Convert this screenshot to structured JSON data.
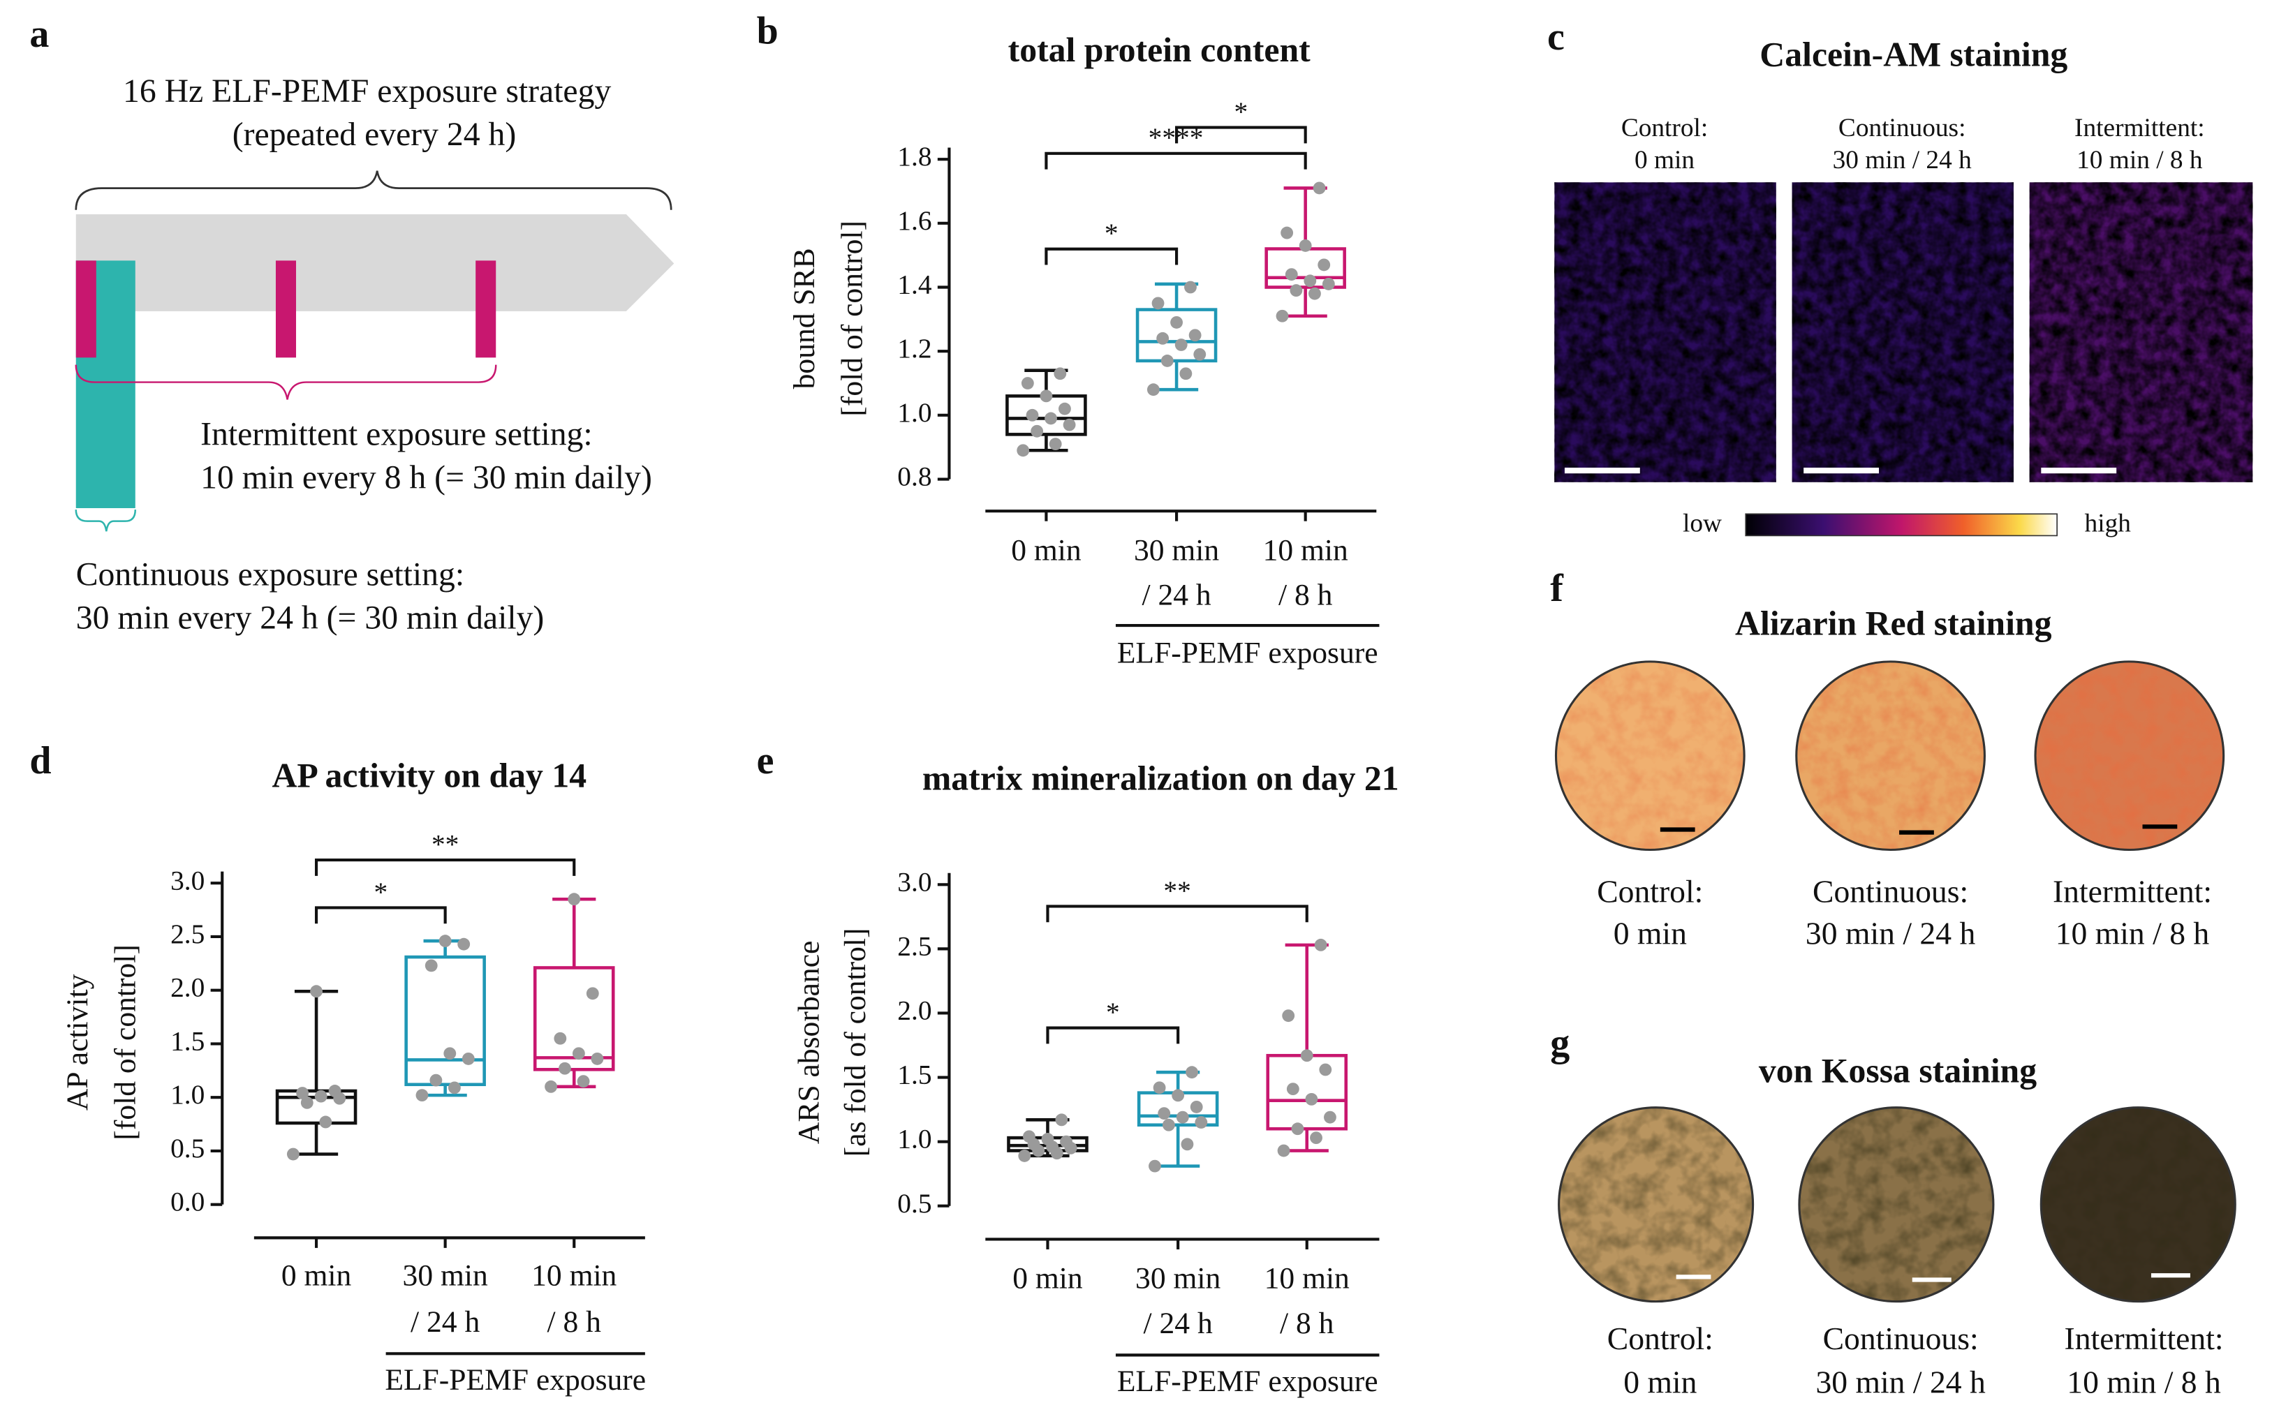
{
  "panels": {
    "a": {
      "letter": "a",
      "title": "16 Hz ELF-PEMF exposure strategy",
      "subtitle": "(repeated every 24 h)",
      "intermittent": [
        "Intermittent exposure setting:",
        "10 min every 8 h (= 30 min daily)"
      ],
      "continuous": [
        "Continuous exposure setting:",
        "30 min every 24 h (= 30 min daily)"
      ]
    },
    "c": {
      "letter": "c",
      "title": "Calcein-AM staining",
      "images": [
        [
          "Control:",
          "0 min"
        ],
        [
          "Continuous:",
          "30 min / 24 h"
        ],
        [
          "Intermittent:",
          "10 min / 8 h"
        ]
      ],
      "scale": [
        "low",
        "high"
      ]
    },
    "f": {
      "letter": "f",
      "title": "Alizarin Red staining",
      "images": [
        [
          "Control:",
          "0 min"
        ],
        [
          "Continuous:",
          "30 min / 24 h"
        ],
        [
          "Intermittent:",
          "10 min / 8 h"
        ]
      ]
    },
    "g": {
      "letter": "g",
      "title": "von Kossa staining",
      "images": [
        [
          "Control:",
          "0 min"
        ],
        [
          "Continuous:",
          "30 min / 24 h"
        ],
        [
          "Intermittent:",
          "10 min / 8 h"
        ]
      ]
    }
  },
  "chart_data": [
    {
      "type": "box",
      "panel": "b",
      "title": "total protein content",
      "y_label": [
        "bound SRB",
        "[fold of control]"
      ],
      "x_label": "ELF-PEMF exposure",
      "categories": [
        [
          "0 min"
        ],
        [
          "30 min",
          "/ 24 h"
        ],
        [
          "10 min",
          "/ 8 h"
        ]
      ],
      "ylim": [
        0.8,
        1.8
      ],
      "yticks": [
        0.8,
        {
          "value": 1,
          "label": "1.0"
        },
        1.2,
        1.4,
        1.6,
        1.8
      ],
      "boxes": [
        {
          "color": "#111111",
          "min": 0.89,
          "q1": 0.94,
          "median": 0.99,
          "q3": 1.06,
          "max": 1.14,
          "points": [
            0.89,
            0.91,
            0.95,
            0.97,
            0.99,
            1.0,
            1.02,
            1.06,
            1.1,
            1.13
          ]
        },
        {
          "color": "#1f97b5",
          "min": 1.08,
          "q1": 1.17,
          "median": 1.23,
          "q3": 1.33,
          "max": 1.41,
          "points": [
            1.08,
            1.13,
            1.17,
            1.19,
            1.22,
            1.24,
            1.25,
            1.29,
            1.35,
            1.4
          ]
        },
        {
          "color": "#c8176f",
          "min": 1.31,
          "q1": 1.4,
          "median": 1.43,
          "q3": 1.52,
          "max": 1.71,
          "points": [
            1.31,
            1.38,
            1.39,
            1.41,
            1.42,
            1.44,
            1.47,
            1.53,
            1.57,
            1.71
          ]
        }
      ],
      "significance": [
        {
          "label": "*",
          "between": [
            0,
            1
          ]
        },
        {
          "label": "****",
          "between": [
            0,
            2
          ]
        },
        {
          "label": "*",
          "between": [
            1,
            2
          ]
        }
      ]
    },
    {
      "type": "box",
      "panel": "d",
      "title": "AP activity on day 14",
      "y_label": [
        "AP activity",
        "[fold of control]"
      ],
      "x_label": "ELF-PEMF exposure",
      "categories": [
        [
          "0 min"
        ],
        [
          "30 min",
          "/ 24 h"
        ],
        [
          "10 min",
          "/ 8 h"
        ]
      ],
      "ylim": [
        0,
        3
      ],
      "yticks": [
        {
          "value": 0,
          "label": "0.0"
        },
        0.5,
        {
          "value": 1,
          "label": "1.0"
        },
        1.5,
        {
          "value": 2,
          "label": "2.0"
        },
        2.5,
        {
          "value": 3,
          "label": "3.0"
        }
      ],
      "boxes": [
        {
          "color": "#111111",
          "min": 0.47,
          "q1": 0.76,
          "median": 1.0,
          "q3": 1.06,
          "max": 1.99,
          "points": [
            0.47,
            0.77,
            0.95,
            0.99,
            1.01,
            1.04,
            1.06,
            1.99
          ]
        },
        {
          "color": "#1f97b5",
          "min": 1.02,
          "q1": 1.12,
          "median": 1.35,
          "q3": 2.31,
          "max": 2.46,
          "points": [
            1.02,
            1.09,
            1.16,
            1.36,
            1.41,
            2.23,
            2.43,
            2.46
          ]
        },
        {
          "color": "#c8176f",
          "min": 1.1,
          "q1": 1.26,
          "median": 1.37,
          "q3": 2.21,
          "max": 2.85,
          "points": [
            1.1,
            1.15,
            1.27,
            1.36,
            1.41,
            1.55,
            1.97,
            2.85
          ]
        }
      ],
      "significance": [
        {
          "label": "*",
          "between": [
            0,
            1
          ]
        },
        {
          "label": "**",
          "between": [
            0,
            2
          ]
        }
      ]
    },
    {
      "type": "box",
      "panel": "e",
      "title": "matrix mineralization on day 21",
      "y_label": [
        "ARS absorbance",
        "[as fold of control]"
      ],
      "x_label": "ELF-PEMF exposure",
      "categories": [
        [
          "0 min"
        ],
        [
          "30 min",
          "/ 24 h"
        ],
        [
          "10 min",
          "/ 8 h"
        ]
      ],
      "ylim": [
        0.5,
        3
      ],
      "yticks": [
        0.5,
        {
          "value": 1,
          "label": "1.0"
        },
        1.5,
        {
          "value": 2,
          "label": "2.0"
        },
        2.5,
        {
          "value": 3,
          "label": "3.0"
        }
      ],
      "boxes": [
        {
          "color": "#111111",
          "min": 0.89,
          "q1": 0.93,
          "median": 0.97,
          "q3": 1.03,
          "max": 1.17,
          "points": [
            0.89,
            0.91,
            0.93,
            0.95,
            0.96,
            0.98,
            1.0,
            1.02,
            1.04,
            1.17
          ]
        },
        {
          "color": "#1f97b5",
          "min": 0.81,
          "q1": 1.13,
          "median": 1.2,
          "q3": 1.38,
          "max": 1.54,
          "points": [
            0.81,
            0.98,
            1.13,
            1.15,
            1.19,
            1.22,
            1.27,
            1.36,
            1.42,
            1.54
          ]
        },
        {
          "color": "#c8176f",
          "min": 0.93,
          "q1": 1.1,
          "median": 1.32,
          "q3": 1.67,
          "max": 2.53,
          "points": [
            0.93,
            1.03,
            1.1,
            1.19,
            1.33,
            1.41,
            1.56,
            1.67,
            1.98,
            2.53
          ]
        }
      ],
      "significance": [
        {
          "label": "*",
          "between": [
            0,
            1
          ]
        },
        {
          "label": "**",
          "between": [
            0,
            2
          ]
        }
      ]
    }
  ]
}
